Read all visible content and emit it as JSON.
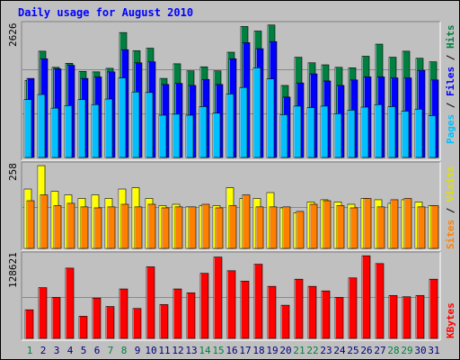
{
  "chart_data": [
    {
      "type": "bar",
      "title": "Daily usage for August 2010",
      "categories": [
        "1",
        "2",
        "3",
        "4",
        "5",
        "6",
        "7",
        "8",
        "9",
        "10",
        "11",
        "12",
        "13",
        "14",
        "15",
        "16",
        "17",
        "18",
        "19",
        "20",
        "21",
        "22",
        "23",
        "24",
        "25",
        "26",
        "27",
        "28",
        "29",
        "30",
        "31"
      ],
      "weekend_days": [
        "1",
        "7",
        "8",
        "14",
        "15",
        "21",
        "22",
        "28",
        "29"
      ],
      "y_label": "2626",
      "ylim": [
        0,
        2626
      ],
      "grid": true,
      "series": [
        {
          "name": "Hits",
          "color": "#008040",
          "values": [
            1530,
            2110,
            1790,
            1870,
            1710,
            1700,
            1770,
            2480,
            2120,
            2170,
            1570,
            1860,
            1720,
            1800,
            1720,
            2090,
            2600,
            2510,
            2630,
            1430,
            1990,
            1880,
            1840,
            1790,
            1780,
            2010,
            2250,
            1990,
            2110,
            1970,
            1900
          ]
        },
        {
          "name": "Files",
          "color": "#0000ff",
          "values": [
            1570,
            1960,
            1760,
            1830,
            1570,
            1600,
            1700,
            2140,
            1880,
            1900,
            1450,
            1470,
            1430,
            1550,
            1450,
            1960,
            2280,
            2160,
            2300,
            1200,
            1480,
            1660,
            1520,
            1430,
            1540,
            1600,
            1600,
            1580,
            1580,
            1730,
            1540
          ]
        },
        {
          "name": "Pages",
          "color": "#00c0ff",
          "values": [
            1150,
            1250,
            980,
            1030,
            1150,
            1050,
            1160,
            1580,
            1300,
            1290,
            840,
            860,
            840,
            1010,
            880,
            1260,
            1390,
            1780,
            1560,
            850,
            1020,
            990,
            1020,
            870,
            940,
            1000,
            1050,
            1010,
            920,
            960,
            830
          ]
        }
      ]
    },
    {
      "type": "bar",
      "categories": [
        "1",
        "2",
        "3",
        "4",
        "5",
        "6",
        "7",
        "8",
        "9",
        "10",
        "11",
        "12",
        "13",
        "14",
        "15",
        "16",
        "17",
        "18",
        "19",
        "20",
        "21",
        "22",
        "23",
        "24",
        "25",
        "26",
        "27",
        "28",
        "29",
        "30",
        "31"
      ],
      "y_label": "258",
      "ylim": [
        0,
        258
      ],
      "grid": true,
      "series": [
        {
          "name": "Visits",
          "color": "#ffff00",
          "values": [
            183,
            255,
            176,
            165,
            154,
            165,
            154,
            183,
            187,
            154,
            132,
            136,
            128,
            132,
            132,
            187,
            154,
            154,
            172,
            125,
            110,
            143,
            150,
            143,
            136,
            154,
            150,
            139,
            150,
            143,
            132
          ]
        },
        {
          "name": "Sites",
          "color": "#ff8000",
          "values": [
            147,
            165,
            132,
            139,
            128,
            125,
            128,
            136,
            128,
            136,
            125,
            128,
            128,
            136,
            125,
            132,
            165,
            128,
            128,
            128,
            114,
            136,
            147,
            132,
            125,
            154,
            128,
            150,
            154,
            128,
            132
          ]
        }
      ]
    },
    {
      "type": "bar",
      "categories": [
        "1",
        "2",
        "3",
        "4",
        "5",
        "6",
        "7",
        "8",
        "9",
        "10",
        "11",
        "12",
        "13",
        "14",
        "15",
        "16",
        "17",
        "18",
        "19",
        "20",
        "21",
        "22",
        "23",
        "24",
        "25",
        "26",
        "27",
        "28",
        "29",
        "30",
        "31"
      ],
      "y_label": "128621",
      "ylim": [
        0,
        128621
      ],
      "grid": true,
      "series": [
        {
          "name": "KBytes",
          "color": "#ff0000",
          "values": [
            44000,
            78000,
            63000,
            108000,
            34000,
            62000,
            49000,
            76000,
            46000,
            110000,
            52000,
            76000,
            70000,
            100000,
            125000,
            104000,
            88000,
            114000,
            80000,
            51000,
            91000,
            80000,
            73000,
            63000,
            93000,
            127000,
            115000,
            66000,
            64000,
            66000,
            91000
          ]
        }
      ]
    }
  ],
  "legend": {
    "top_sep1": " / ",
    "top_sep2": " / ",
    "mid_sep": " / "
  },
  "colors": {
    "title": "#0000ff",
    "weekday_label": "#000080",
    "weekend_label": "#008040"
  }
}
